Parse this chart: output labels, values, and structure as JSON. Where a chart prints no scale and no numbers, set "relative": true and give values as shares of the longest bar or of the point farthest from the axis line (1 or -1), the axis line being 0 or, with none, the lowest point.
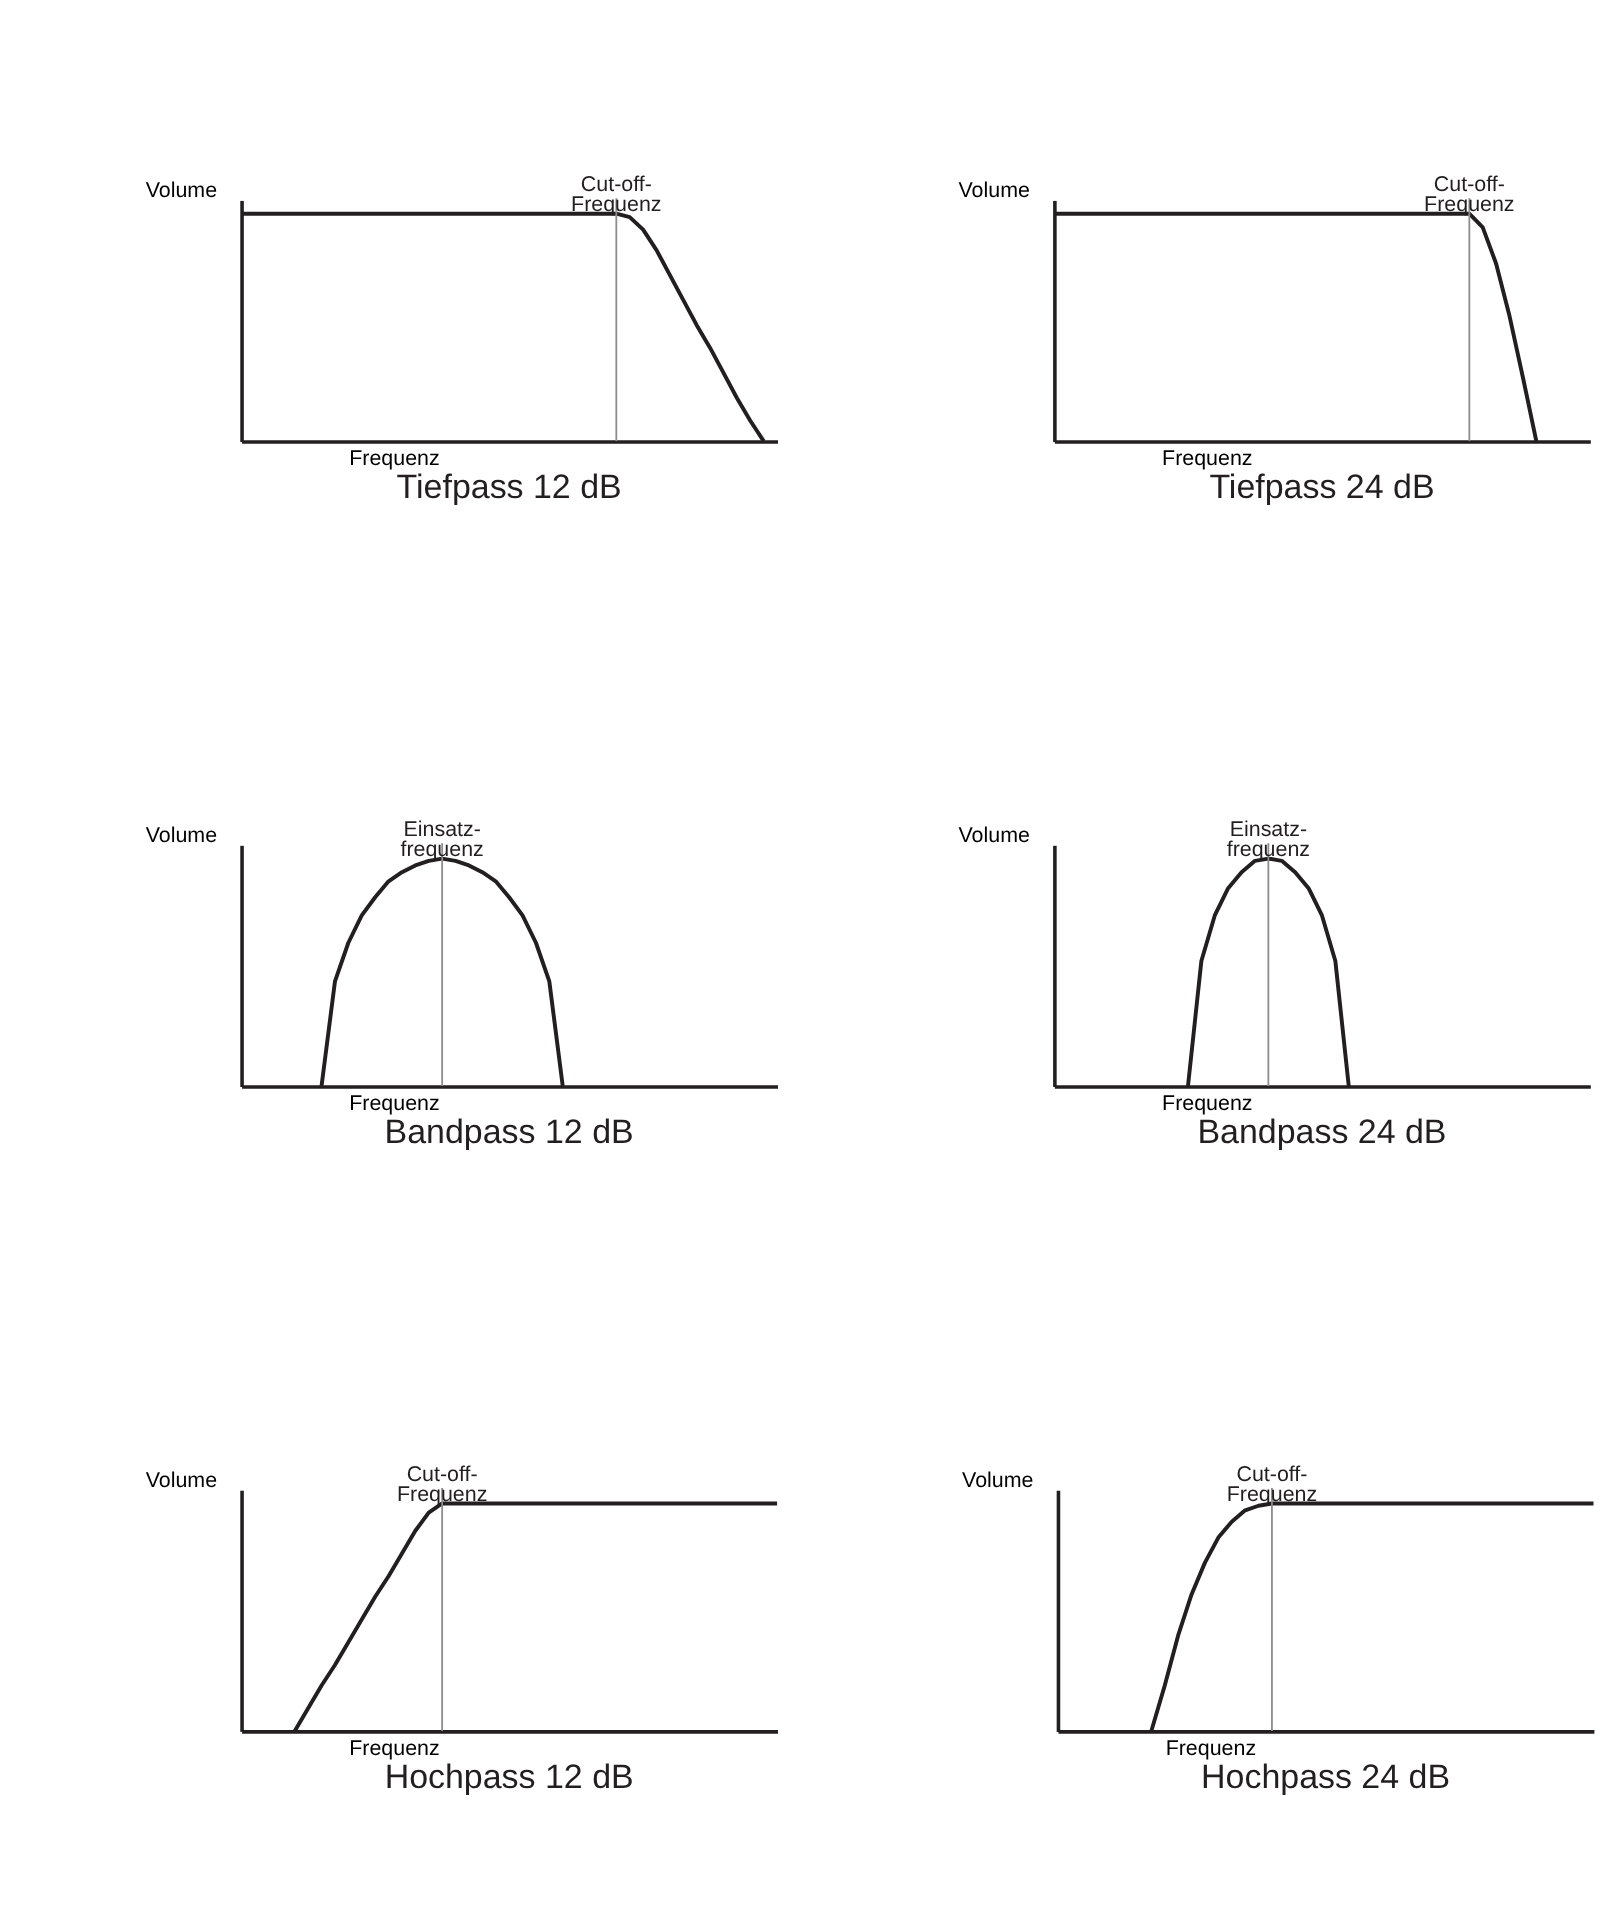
{
  "chart_data": [
    {
      "type": "line",
      "title": "Tiefpass 12 dB",
      "xlabel": "Frequenz",
      "ylabel": "Volume",
      "relative": true,
      "tick_labels": false,
      "categories": [
        null,
        null,
        null,
        null,
        null,
        null,
        null,
        null,
        null,
        null,
        null,
        null,
        null,
        null,
        null,
        null,
        null,
        null,
        null,
        null,
        null,
        null,
        null,
        null,
        null,
        null,
        null,
        null,
        null,
        null,
        null,
        null,
        null,
        null,
        null,
        null,
        null,
        null,
        null,
        null,
        null
      ],
      "series": [
        {
          "color": "#231f20",
          "values": [
            1,
            1,
            1,
            1,
            1,
            1,
            1,
            1,
            1,
            1,
            1,
            1,
            1,
            1,
            1,
            1,
            1,
            1,
            1,
            1,
            1,
            1,
            1,
            1,
            1,
            1,
            1,
            1,
            1,
            0.985,
            0.93,
            0.84,
            0.73,
            0.62,
            0.51,
            0.41,
            0.3,
            0.19,
            0.09,
            0,
            null
          ]
        }
      ],
      "annotations": [
        "Cut-off-\nFrequenz"
      ]
    },
    {
      "type": "line",
      "title": "Tiefpass 24 dB",
      "xlabel": "Frequenz",
      "ylabel": "Volume",
      "relative": true,
      "tick_labels": false,
      "categories": [
        null,
        null,
        null,
        null,
        null,
        null,
        null,
        null,
        null,
        null,
        null,
        null,
        null,
        null,
        null,
        null,
        null,
        null,
        null,
        null,
        null,
        null,
        null,
        null,
        null,
        null,
        null,
        null,
        null,
        null,
        null,
        null,
        null,
        null,
        null,
        null,
        null,
        null,
        null,
        null,
        null
      ],
      "series": [
        {
          "color": "#231f20",
          "values": [
            1,
            1,
            1,
            1,
            1,
            1,
            1,
            1,
            1,
            1,
            1,
            1,
            1,
            1,
            1,
            1,
            1,
            1,
            1,
            1,
            1,
            1,
            1,
            1,
            1,
            1,
            1,
            1,
            1,
            1,
            1,
            1,
            0.94,
            0.78,
            0.55,
            0.28,
            0,
            null,
            null,
            null,
            null
          ]
        }
      ],
      "annotations": [
        "Cut-off-\nFrequenz"
      ]
    },
    {
      "type": "line",
      "title": "Bandpass 12 dB",
      "xlabel": "Frequenz",
      "ylabel": "Volume",
      "relative": true,
      "tick_labels": false,
      "categories": [
        null,
        null,
        null,
        null,
        null,
        null,
        null,
        null,
        null,
        null,
        null,
        null,
        null,
        null,
        null,
        null,
        null,
        null,
        null,
        null,
        null,
        null,
        null,
        null,
        null,
        null,
        null,
        null,
        null,
        null,
        null,
        null,
        null,
        null,
        null,
        null,
        null,
        null,
        null,
        null,
        null
      ],
      "series": [
        {
          "color": "#231f20",
          "values": [
            null,
            null,
            null,
            null,
            null,
            null,
            0,
            0.46,
            0.63,
            0.75,
            0.83,
            0.9,
            0.94,
            0.97,
            0.99,
            1,
            0.99,
            0.97,
            0.94,
            0.9,
            0.83,
            0.75,
            0.63,
            0.46,
            0,
            null,
            null,
            null,
            null,
            null,
            null,
            null,
            null,
            null,
            null,
            null,
            null,
            null,
            null,
            null,
            null
          ]
        }
      ],
      "annotations": [
        "Einsatz-\nfrequenz"
      ]
    },
    {
      "type": "line",
      "title": "Bandpass 24 dB",
      "xlabel": "Frequenz",
      "ylabel": "Volume",
      "relative": true,
      "tick_labels": false,
      "categories": [
        null,
        null,
        null,
        null,
        null,
        null,
        null,
        null,
        null,
        null,
        null,
        null,
        null,
        null,
        null,
        null,
        null,
        null,
        null,
        null,
        null,
        null,
        null,
        null,
        null,
        null,
        null,
        null,
        null,
        null,
        null,
        null,
        null,
        null,
        null,
        null,
        null,
        null,
        null,
        null,
        null
      ],
      "series": [
        {
          "color": "#231f20",
          "values": [
            null,
            null,
            null,
            null,
            null,
            null,
            null,
            null,
            null,
            null,
            0,
            0.55,
            0.75,
            0.87,
            0.94,
            0.99,
            1,
            0.99,
            0.94,
            0.87,
            0.75,
            0.55,
            0,
            null,
            null,
            null,
            null,
            null,
            null,
            null,
            null,
            null,
            null,
            null,
            null,
            null,
            null,
            null,
            null,
            null,
            null
          ]
        }
      ],
      "annotations": [
        "Einsatz-\nfrequenz"
      ]
    },
    {
      "type": "line",
      "title": "Hochpass 12 dB",
      "xlabel": "Frequenz",
      "ylabel": "Volume",
      "relative": true,
      "tick_labels": false,
      "categories": [
        null,
        null,
        null,
        null,
        null,
        null,
        null,
        null,
        null,
        null,
        null,
        null,
        null,
        null,
        null,
        null,
        null,
        null,
        null,
        null,
        null,
        null,
        null,
        null,
        null,
        null,
        null,
        null,
        null,
        null,
        null,
        null,
        null,
        null,
        null,
        null,
        null,
        null,
        null,
        null,
        null
      ],
      "series": [
        {
          "color": "#231f20",
          "values": [
            null,
            null,
            null,
            null,
            0,
            0.1,
            0.2,
            0.29,
            0.39,
            0.49,
            0.59,
            0.68,
            0.78,
            0.88,
            0.96,
            1,
            1,
            1,
            1,
            1,
            1,
            1,
            1,
            1,
            1,
            1,
            1,
            1,
            1,
            1,
            1,
            1,
            1,
            1,
            1,
            1,
            1,
            1,
            1,
            1,
            1
          ]
        }
      ],
      "annotations": [
        "Cut-off-\nFrequenz"
      ]
    },
    {
      "type": "line",
      "title": "Hochpass 24 dB",
      "xlabel": "Frequenz",
      "ylabel": "Volume",
      "relative": true,
      "tick_labels": false,
      "categories": [
        null,
        null,
        null,
        null,
        null,
        null,
        null,
        null,
        null,
        null,
        null,
        null,
        null,
        null,
        null,
        null,
        null,
        null,
        null,
        null,
        null,
        null,
        null,
        null,
        null,
        null,
        null,
        null,
        null,
        null,
        null,
        null,
        null,
        null,
        null,
        null,
        null,
        null,
        null,
        null,
        null
      ],
      "series": [
        {
          "color": "#231f20",
          "values": [
            null,
            null,
            null,
            null,
            null,
            null,
            null,
            0,
            0.2,
            0.42,
            0.6,
            0.74,
            0.85,
            0.92,
            0.97,
            0.99,
            1,
            1,
            1,
            1,
            1,
            1,
            1,
            1,
            1,
            1,
            1,
            1,
            1,
            1,
            1,
            1,
            1,
            1,
            1,
            1,
            1,
            1,
            1,
            1,
            1
          ]
        }
      ],
      "annotations": [
        "Cut-off-\nFrequenz"
      ]
    }
  ]
}
